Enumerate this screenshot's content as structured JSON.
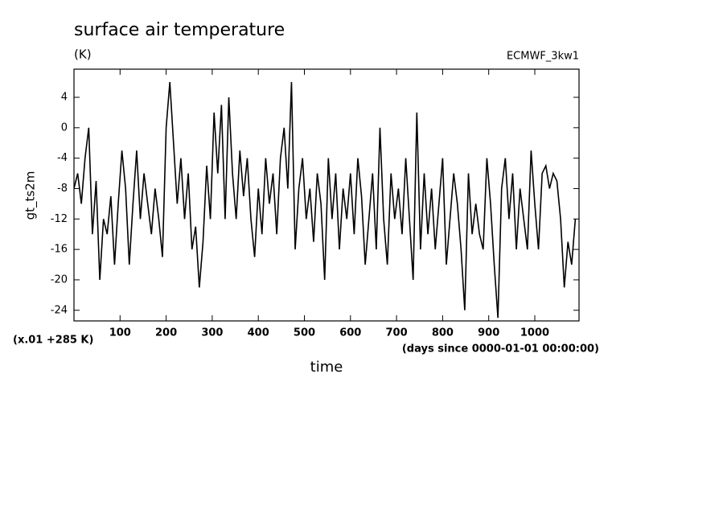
{
  "chart_data": {
    "type": "line",
    "title": "surface air temperature",
    "units": "(K)",
    "subtitle": "ECMWF_3kw1",
    "y_label": "gt_ts2m",
    "y_note": "(x.01 +285 K)",
    "x_label": "time",
    "x_note": "(days since 0000-01-01 00:00:00)",
    "xlim": [
      0,
      1096
    ],
    "ylim": [
      -25.4,
      7.7
    ],
    "xticks": [
      100,
      200,
      300,
      400,
      500,
      600,
      700,
      800,
      900,
      1000
    ],
    "yticks": [
      4,
      0,
      -4,
      -8,
      -12,
      -16,
      -20,
      -24
    ],
    "color": "#000000",
    "x": [
      0,
      8,
      16,
      24,
      32,
      40,
      48,
      56,
      64,
      72,
      80,
      88,
      96,
      104,
      112,
      120,
      128,
      136,
      144,
      152,
      160,
      168,
      176,
      184,
      192,
      200,
      208,
      216,
      224,
      232,
      240,
      248,
      256,
      264,
      272,
      280,
      288,
      296,
      304,
      312,
      320,
      328,
      336,
      344,
      352,
      360,
      368,
      376,
      384,
      392,
      400,
      408,
      416,
      424,
      432,
      440,
      448,
      456,
      464,
      472,
      480,
      488,
      496,
      504,
      512,
      520,
      528,
      536,
      544,
      552,
      560,
      568,
      576,
      584,
      592,
      600,
      608,
      616,
      624,
      632,
      640,
      648,
      656,
      664,
      672,
      680,
      688,
      696,
      704,
      712,
      720,
      728,
      736,
      744,
      752,
      760,
      768,
      776,
      784,
      792,
      800,
      808,
      816,
      824,
      832,
      840,
      848,
      856,
      864,
      872,
      880,
      888,
      896,
      904,
      912,
      920,
      928,
      936,
      944,
      952,
      960,
      968,
      976,
      984,
      992,
      1000,
      1008,
      1016,
      1024,
      1032,
      1040,
      1048,
      1056,
      1064,
      1072,
      1080,
      1088
    ],
    "values": [
      -8,
      -6,
      -10,
      -4,
      0,
      -14,
      -7,
      -20,
      -12,
      -14,
      -9,
      -18,
      -10,
      -3,
      -8,
      -18,
      -10,
      -3,
      -12,
      -6,
      -10,
      -14,
      -8,
      -12,
      -17,
      0,
      6,
      -2,
      -10,
      -4,
      -12,
      -6,
      -16,
      -13,
      -21,
      -15,
      -5,
      -12,
      2,
      -6,
      3,
      -12,
      4,
      -6,
      -12,
      -3,
      -9,
      -4,
      -12,
      -17,
      -8,
      -14,
      -4,
      -10,
      -6,
      -14,
      -4,
      0,
      -8,
      6,
      -16,
      -8,
      -4,
      -12,
      -8,
      -15,
      -6,
      -10,
      -20,
      -4,
      -12,
      -6,
      -16,
      -8,
      -12,
      -6,
      -14,
      -4,
      -9,
      -18,
      -12,
      -6,
      -16,
      0,
      -12,
      -18,
      -6,
      -12,
      -8,
      -14,
      -4,
      -12,
      -20,
      2,
      -16,
      -6,
      -14,
      -8,
      -16,
      -10,
      -4,
      -18,
      -12,
      -6,
      -10,
      -16,
      -24,
      -6,
      -14,
      -10,
      -14,
      -16,
      -4,
      -10,
      -18,
      -25,
      -8,
      -4,
      -12,
      -6,
      -16,
      -8,
      -12,
      -16,
      -3,
      -10,
      -16,
      -6,
      -5,
      -8,
      -6,
      -7,
      -12,
      -21,
      -15,
      -18,
      -12
    ]
  }
}
